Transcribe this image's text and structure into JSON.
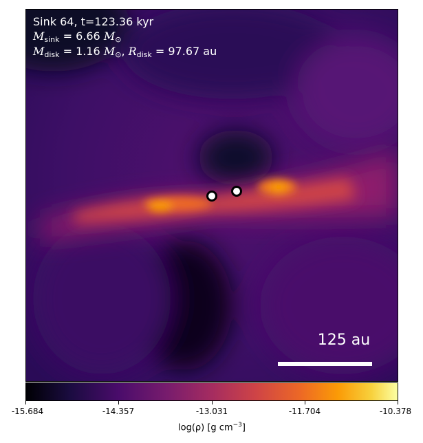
{
  "annotations": {
    "line1": "Sink 64, t=123.36 kyr",
    "sink_mass_value": "6.66",
    "disk_mass_value": "1.16",
    "disk_radius_value": "97.67",
    "unit_au": "au",
    "symbol_M": "M",
    "symbol_R": "R",
    "sub_sink": "sink",
    "sub_disk": "disk",
    "sun_symbol": "⊙"
  },
  "scalebar": {
    "label": "125 au"
  },
  "colorbar": {
    "ticks": [
      "-15.684",
      "-14.357",
      "-13.031",
      "-11.704",
      "-10.378"
    ],
    "label_main": "log(ρ) [g cm",
    "label_exp": "−3",
    "label_close": "]"
  },
  "colormap": "inferno",
  "colors": {
    "background": "#3b0f63",
    "disk": "#ed6925",
    "dense": "#fb9b06"
  }
}
